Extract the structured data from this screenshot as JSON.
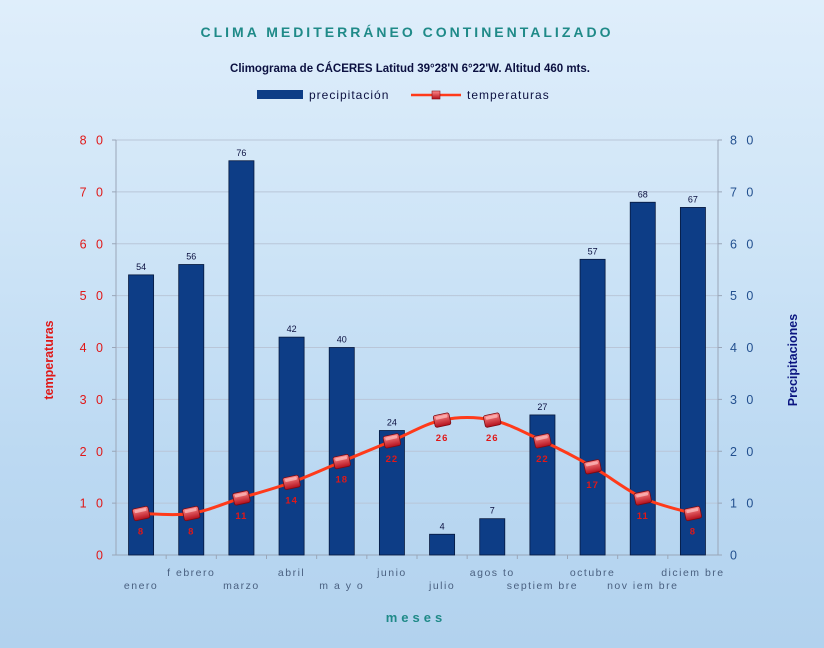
{
  "chart_data": {
    "type": "bar",
    "title": "CLIMA MEDITERRÁNEO CONTINENTALIZADO",
    "subtitle": "Climograma de CÁCERES Latitud 39°28'N 6°22'W. Altitud 460 mts.",
    "xlabel": "meses",
    "ylabel_left": "temperaturas",
    "ylabel_right": "Precipitaciones",
    "ylim": [
      0,
      80
    ],
    "yticks": [
      "0",
      "1 0",
      "2 0",
      "3 0",
      "4 0",
      "5 0",
      "6 0",
      "7 0",
      "8 0"
    ],
    "categories": [
      "enero",
      "febrero",
      "marzo",
      "abril",
      "mayo",
      "junio",
      "julio",
      "agosto",
      "septiembre",
      "octubre",
      "noviembre",
      "diciembre"
    ],
    "category_labels": [
      "enero",
      "f ebrero",
      "marzo",
      "abril",
      "m a y o",
      "junio",
      "julio",
      "agos to",
      "septiem bre",
      "octubre",
      "nov iem bre",
      "diciem bre"
    ],
    "series": [
      {
        "name": "precipitación",
        "type": "bar",
        "axis": "right",
        "color": "#0d3d86",
        "values": [
          54,
          56,
          76,
          42,
          40,
          24,
          4,
          7,
          27,
          57,
          68,
          67
        ],
        "labels": [
          "54",
          "56",
          "76",
          "42",
          "40",
          "24",
          "4",
          "7",
          "27",
          "57",
          "68",
          "67"
        ]
      },
      {
        "name": "temperaturas",
        "type": "line",
        "axis": "left",
        "color": "#ff3a1a",
        "marker_color": "#e0202a",
        "values": [
          8,
          8,
          11,
          14,
          18,
          22,
          26,
          26,
          22,
          17,
          11,
          8
        ],
        "labels": [
          "8",
          "8",
          "11",
          "14",
          "18",
          "22",
          "26",
          "26",
          "22",
          "17",
          "11",
          "8"
        ]
      }
    ],
    "grid": true,
    "legend_position": "top"
  }
}
